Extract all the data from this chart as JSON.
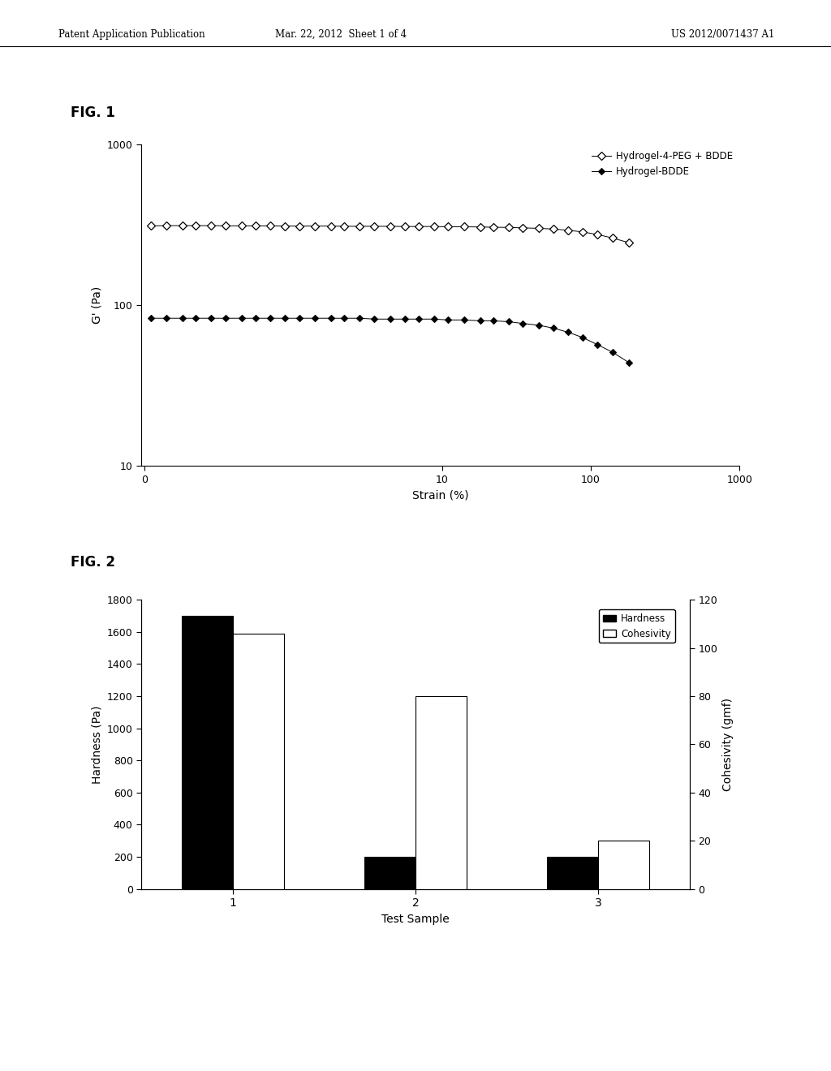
{
  "header_left": "Patent Application Publication",
  "header_center": "Mar. 22, 2012  Sheet 1 of 4",
  "header_right": "US 2012/0071437 A1",
  "fig1_label": "FIG. 1",
  "fig2_label": "FIG. 2",
  "fig1": {
    "xlabel": "Strain (%)",
    "ylabel": "G' (Pa)",
    "ylim": [
      10,
      1000
    ],
    "xlim": [
      0.1,
      1000
    ],
    "legend1": "Hydrogel-4-PEG + BDDE",
    "legend2": "Hydrogel-BDDE",
    "series1_x": [
      0.11,
      0.14,
      0.18,
      0.22,
      0.28,
      0.35,
      0.45,
      0.56,
      0.7,
      0.88,
      1.1,
      1.4,
      1.8,
      2.2,
      2.8,
      3.5,
      4.5,
      5.6,
      7.0,
      8.8,
      11,
      14,
      18,
      22,
      28,
      35,
      45,
      56,
      70,
      88,
      110,
      140,
      180
    ],
    "series1_y": [
      312,
      313,
      313,
      313,
      313,
      312,
      312,
      312,
      312,
      311,
      311,
      311,
      311,
      310,
      310,
      310,
      310,
      309,
      309,
      309,
      308,
      308,
      307,
      306,
      305,
      303,
      301,
      298,
      293,
      286,
      276,
      262,
      245
    ],
    "series2_x": [
      0.11,
      0.14,
      0.18,
      0.22,
      0.28,
      0.35,
      0.45,
      0.56,
      0.7,
      0.88,
      1.1,
      1.4,
      1.8,
      2.2,
      2.8,
      3.5,
      4.5,
      5.6,
      7.0,
      8.8,
      11,
      14,
      18,
      22,
      28,
      35,
      45,
      56,
      70,
      88,
      110,
      140,
      180
    ],
    "series2_y": [
      83,
      83,
      83,
      83,
      83,
      83,
      83,
      83,
      83,
      83,
      83,
      83,
      83,
      83,
      83,
      82,
      82,
      82,
      82,
      82,
      81,
      81,
      80,
      80,
      79,
      77,
      75,
      72,
      68,
      63,
      57,
      51,
      44
    ]
  },
  "fig2": {
    "xlabel": "Test Sample",
    "ylabel_left": "Hardness (Pa)",
    "ylabel_right": "Cohesivity (gmf)",
    "legend1": "Hardness",
    "legend2": "Cohesivity",
    "categories": [
      "1",
      "2",
      "3"
    ],
    "hardness": [
      1700,
      200,
      200
    ],
    "cohesivity": [
      106,
      80,
      20
    ],
    "ylim_left": [
      0,
      1800
    ],
    "ylim_right": [
      0,
      120
    ],
    "yticks_left": [
      0,
      200,
      400,
      600,
      800,
      1000,
      1200,
      1400,
      1600,
      1800
    ],
    "yticks_right": [
      0,
      20,
      40,
      60,
      80,
      100,
      120
    ]
  },
  "bg_color": "#ffffff",
  "text_color": "#000000"
}
